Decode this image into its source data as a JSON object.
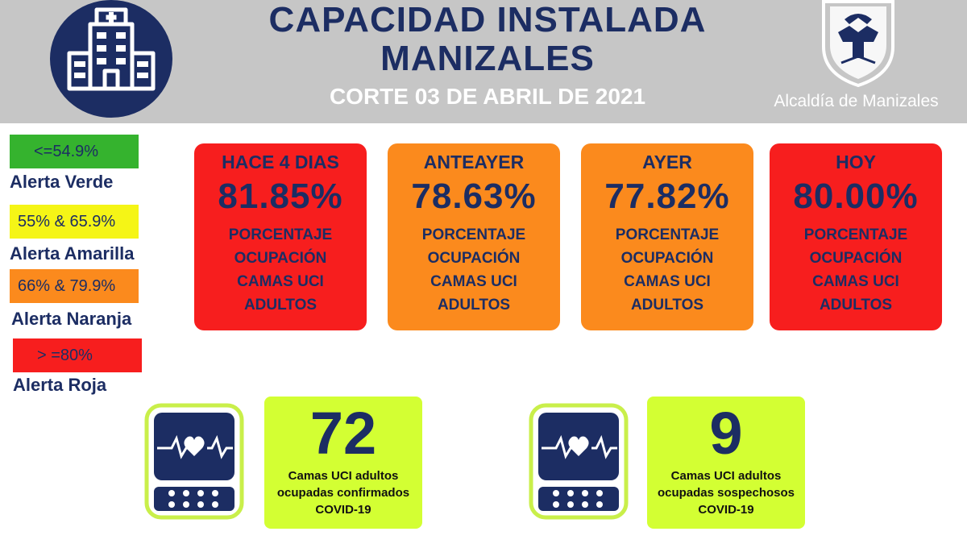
{
  "header": {
    "title_line1": "CAPACIDAD INSTALADA",
    "title_line2": "MANIZALES",
    "subtitle": "CORTE 03 DE ABRIL DE 2021",
    "org": "Alcaldía de Manizales"
  },
  "colors": {
    "navy": "#1c2d63",
    "green": "#35b32e",
    "yellow": "#f5f516",
    "orange": "#fb8a1d",
    "red": "#f71e1e",
    "lime": "#d3ff33"
  },
  "legend": [
    {
      "range": "<=54.9%",
      "label": "Alerta Verde"
    },
    {
      "range": "55% & 65.9%",
      "label": "Alerta Amarilla"
    },
    {
      "range": "66% & 79.9%",
      "label": "Alerta Naranja"
    },
    {
      "range": "> =80%",
      "label": "Alerta Roja"
    }
  ],
  "cards": [
    {
      "title": "HACE 4 DIAS",
      "value": "81.85%",
      "desc1": "PORCENTAJE",
      "desc2": "OCUPACIÓN",
      "desc3": "CAMAS UCI",
      "desc4": "ADULTOS"
    },
    {
      "title": "ANTEAYER",
      "value": "78.63%",
      "desc1": "PORCENTAJE",
      "desc2": "OCUPACIÓN",
      "desc3": "CAMAS UCI",
      "desc4": "ADULTOS"
    },
    {
      "title": "AYER",
      "value": "77.82%",
      "desc1": "PORCENTAJE",
      "desc2": "OCUPACIÓN",
      "desc3": "CAMAS UCI",
      "desc4": "ADULTOS"
    },
    {
      "title": "HOY",
      "value": "80.00%",
      "desc1": "PORCENTAJE",
      "desc2": "OCUPACIÓN",
      "desc3": "CAMAS UCI",
      "desc4": "ADULTOS"
    }
  ],
  "stats": [
    {
      "value": "72",
      "line1": "Camas UCI adultos",
      "line2": "ocupadas confirmados",
      "line3": "COVID-19"
    },
    {
      "value": "9",
      "line1": "Camas UCI adultos",
      "line2": "ocupadas sospechosos",
      "line3": "COVID-19"
    }
  ],
  "icons": {
    "hospital": "hospital-icon",
    "crest": "coat-of-arms-icon",
    "monitor": "heart-monitor-icon"
  }
}
